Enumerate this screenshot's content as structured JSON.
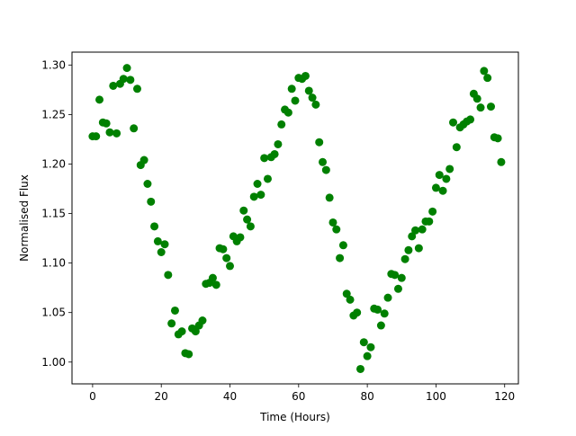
{
  "chart_data": {
    "type": "scatter",
    "title": "",
    "xlabel": "Time (Hours)",
    "ylabel": "Normalised Flux",
    "xlim": [
      -6,
      124
    ],
    "ylim": [
      0.978,
      1.313
    ],
    "xticks": [
      0,
      20,
      40,
      60,
      80,
      100,
      120
    ],
    "yticks": [
      1.0,
      1.05,
      1.1,
      1.15,
      1.2,
      1.25,
      1.3
    ],
    "xtick_labels": [
      "0",
      "20",
      "40",
      "60",
      "80",
      "100",
      "120"
    ],
    "ytick_labels": [
      "1.00",
      "1.05",
      "1.10",
      "1.15",
      "1.20",
      "1.25",
      "1.30"
    ],
    "grid": false,
    "marker_color": "#008000",
    "x": [
      0.0,
      1.0,
      2.0,
      3.0,
      4.0,
      5.0,
      6.0,
      7.0,
      8.0,
      9.0,
      10.0,
      11.0,
      12.0,
      13.0,
      14.0,
      15.0,
      16.0,
      17.0,
      18.0,
      19.0,
      20.0,
      21.0,
      22.0,
      23.0,
      24.0,
      25.0,
      26.0,
      27.0,
      28.0,
      29.0,
      30.0,
      31.0,
      32.0,
      33.0,
      34.0,
      35.0,
      36.0,
      37.0,
      38.0,
      39.0,
      40.0,
      41.0,
      42.0,
      43.0,
      44.0,
      45.0,
      46.0,
      47.0,
      48.0,
      49.0,
      50.0,
      51.0,
      52.0,
      53.0,
      54.0,
      55.0,
      56.0,
      57.0,
      58.0,
      59.0,
      60.0,
      61.0,
      62.0,
      63.0,
      64.0,
      65.0,
      66.0,
      67.0,
      68.0,
      69.0,
      70.0,
      71.0,
      72.0,
      73.0,
      74.0,
      75.0,
      76.0,
      77.0,
      78.0,
      79.0,
      80.0,
      81.0,
      82.0,
      83.0,
      84.0,
      85.0,
      86.0,
      87.0,
      88.0,
      89.0,
      90.0,
      91.0,
      92.0,
      93.0,
      94.0,
      95.0,
      96.0,
      97.0,
      98.0,
      99.0,
      100.0,
      101.0,
      102.0,
      103.0,
      104.0,
      105.0,
      106.0,
      107.0,
      108.0,
      109.0,
      110.0,
      111.0,
      112.0,
      113.0,
      114.0,
      115.0,
      116.0,
      117.0,
      118.0,
      119.0
    ],
    "y": [
      1.228,
      1.228,
      1.265,
      1.242,
      1.241,
      1.232,
      1.279,
      1.231,
      1.281,
      1.286,
      1.297,
      1.285,
      1.236,
      1.276,
      1.199,
      1.204,
      1.18,
      1.162,
      1.137,
      1.122,
      1.111,
      1.119,
      1.088,
      1.039,
      1.052,
      1.028,
      1.031,
      1.009,
      1.008,
      1.034,
      1.031,
      1.037,
      1.042,
      1.079,
      1.08,
      1.085,
      1.078,
      1.115,
      1.114,
      1.105,
      1.097,
      1.127,
      1.122,
      1.126,
      1.153,
      1.144,
      1.137,
      1.167,
      1.18,
      1.169,
      1.206,
      1.185,
      1.207,
      1.21,
      1.22,
      1.24,
      1.255,
      1.252,
      1.276,
      1.264,
      1.287,
      1.286,
      1.289,
      1.274,
      1.267,
      1.26,
      1.222,
      1.202,
      1.194,
      1.166,
      1.141,
      1.134,
      1.105,
      1.118,
      1.069,
      1.063,
      1.047,
      1.05,
      0.993,
      1.02,
      1.006,
      1.015,
      1.054,
      1.053,
      1.037,
      1.049,
      1.065,
      1.089,
      1.088,
      1.074,
      1.085,
      1.104,
      1.113,
      1.127,
      1.133,
      1.115,
      1.134,
      1.142,
      1.142,
      1.152,
      1.176,
      1.189,
      1.173,
      1.185,
      1.195,
      1.242,
      1.217,
      1.237,
      1.24,
      1.243,
      1.245,
      1.271,
      1.266,
      1.257,
      1.294,
      1.287,
      1.258,
      1.227,
      1.226,
      1.202
    ]
  }
}
